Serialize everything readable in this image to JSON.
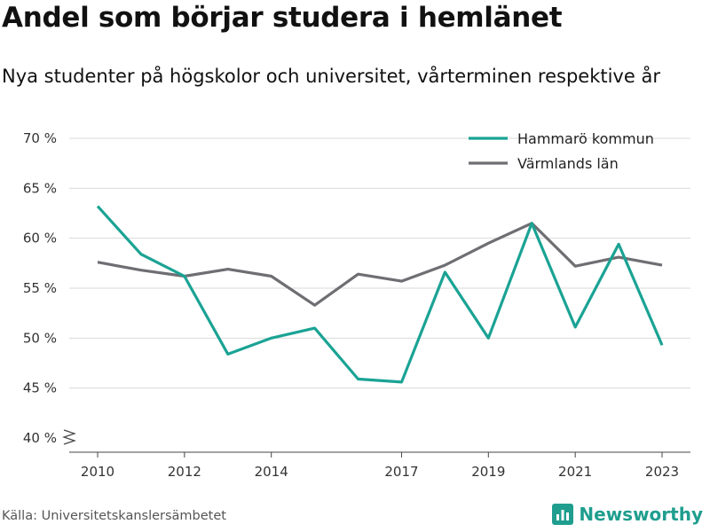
{
  "title": "Andel som börjar studera i hemlänet",
  "subtitle": "Nya studenter på högskolor och universitet, vårterminen respektive år",
  "source": "Källa: Universitetskanslersämbetet",
  "brand": "Newsworthy",
  "colors": {
    "teal": "#1aa394",
    "grey": "#6e6e73",
    "grid": "#d9d9d9"
  },
  "chart_data": {
    "type": "line",
    "title": "Andel som börjar studera i hemlänet",
    "subtitle": "Nya studenter på högskolor och universitet, vårterminen respektive år",
    "xlabel": "",
    "ylabel": "",
    "ylim": [
      40,
      70
    ],
    "xlim": [
      2010,
      2023
    ],
    "y_ticks": [
      40,
      45,
      50,
      55,
      60,
      65,
      70
    ],
    "y_tick_labels": [
      "40 %",
      "45 %",
      "50 %",
      "55 %",
      "60 %",
      "65 %",
      "70 %"
    ],
    "x_ticks": [
      2010,
      2012,
      2014,
      2017,
      2019,
      2021,
      2023
    ],
    "x_tick_labels": [
      "2010",
      "2012",
      "2014",
      "2017",
      "2019",
      "2021",
      "2023"
    ],
    "x": [
      2010,
      2011,
      2012,
      2013,
      2014,
      2015,
      2016,
      2017,
      2018,
      2019,
      2020,
      2021,
      2022,
      2023
    ],
    "grid": true,
    "legend_position": "top-right",
    "series": [
      {
        "name": "Hammarö kommun",
        "color": "#1aa394",
        "values": [
          63.2,
          58.4,
          56.2,
          48.4,
          50.0,
          51.0,
          45.9,
          45.6,
          56.6,
          50.0,
          61.5,
          51.1,
          59.4,
          49.3
        ]
      },
      {
        "name": "Värmlands län",
        "color": "#6e6e73",
        "values": [
          57.6,
          56.8,
          56.2,
          56.9,
          56.2,
          53.3,
          56.4,
          55.7,
          57.3,
          59.5,
          61.5,
          57.2,
          58.1,
          57.3
        ]
      }
    ]
  }
}
